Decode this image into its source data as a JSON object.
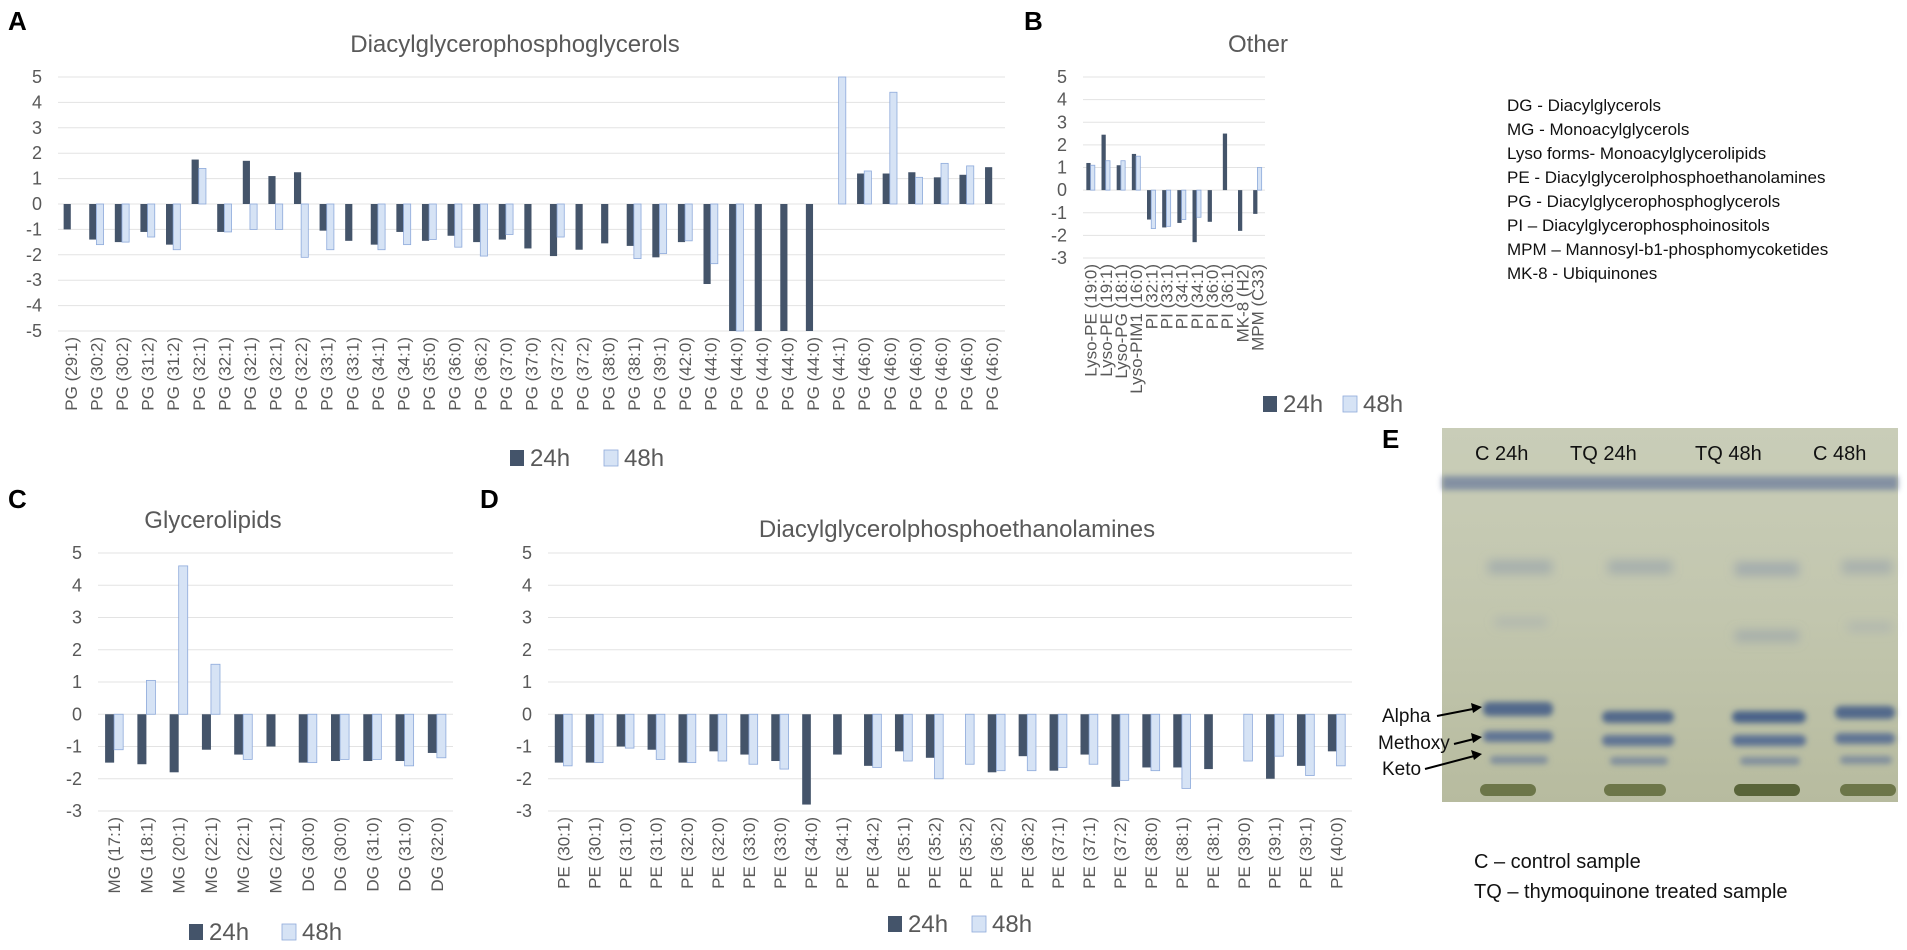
{
  "panels": {
    "A": "A",
    "B": "B",
    "C": "C",
    "D": "D",
    "E": "E"
  },
  "legend": {
    "s1": "24h",
    "s2": "48h"
  },
  "chart_data": [
    {
      "id": "A",
      "type": "bar",
      "title": "Diacylglycerophosphoglycerols",
      "ylim": [
        -5,
        5
      ],
      "yticks": [
        -5,
        -4,
        -3,
        -2,
        -1,
        0,
        1,
        2,
        3,
        4,
        5
      ],
      "categories": [
        "PG (29:1)",
        "PG (30:2)",
        "PG (30:2)",
        "PG (31:2)",
        "PG (31:2)",
        "PG (32:1)",
        "PG (32:1)",
        "PG (32:1)",
        "PG (32:1)",
        "PG (32:2)",
        "PG (33:1)",
        "PG (33:1)",
        "PG (34:1)",
        "PG (34:1)",
        "PG (35:0)",
        "PG (36:0)",
        "PG (36:2)",
        "PG (37:0)",
        "PG (37:0)",
        "PG (37:2)",
        "PG (37:2)",
        "PG (38:0)",
        "PG (38:1)",
        "PG (39:1)",
        "PG (42:0)",
        "PG (44:0)",
        "PG (44:0)",
        "PG (44:0)",
        "PG (44:0)",
        "PG (44:0)",
        "PG (44:1)",
        "PG (46:0)",
        "PG (46:0)",
        "PG (46:0)",
        "PG (46:0)",
        "PG (46:0)",
        "PG (46:0)"
      ],
      "series": [
        {
          "name": "24h",
          "values": [
            -1.0,
            -1.4,
            -1.5,
            -1.1,
            -1.6,
            1.75,
            -1.1,
            1.7,
            1.1,
            1.25,
            -1.05,
            -1.45,
            -1.6,
            -1.1,
            -1.45,
            -1.25,
            -1.5,
            -1.4,
            -1.75,
            -2.05,
            -1.8,
            -1.55,
            -1.65,
            -2.1,
            -1.5,
            -3.15,
            -5.0,
            -5.0,
            -5.0,
            -5.0,
            null,
            1.2,
            1.2,
            1.25,
            1.05,
            1.15,
            1.45
          ]
        },
        {
          "name": "48h",
          "values": [
            null,
            -1.6,
            -1.5,
            -1.3,
            -1.8,
            1.4,
            -1.1,
            -1.0,
            -1.0,
            -2.1,
            -1.8,
            null,
            -1.8,
            -1.6,
            -1.4,
            -1.7,
            -2.05,
            -1.2,
            null,
            -1.3,
            null,
            null,
            -2.15,
            -1.95,
            -1.45,
            -2.35,
            -5.0,
            null,
            null,
            null,
            5.0,
            1.3,
            4.4,
            1.05,
            1.6,
            1.5,
            null
          ]
        }
      ]
    },
    {
      "id": "B",
      "type": "bar",
      "title": "Other",
      "ylim": [
        -3,
        5
      ],
      "yticks": [
        -3,
        -2,
        -1,
        0,
        1,
        2,
        3,
        4,
        5
      ],
      "categories": [
        "Lyso-PE (19:0)",
        "Lyso-PE (19:1)",
        "Lyso-PG (18:1)",
        "Lyso-PIM1 (16:0)",
        "PI (32:1)",
        "PI (33:1)",
        "PI (34:1)",
        "PI (34:1)",
        "PI (36:0)",
        "PI (36:1)",
        "MK-8 (H2)",
        "MPM (C33)"
      ],
      "series": [
        {
          "name": "24h",
          "values": [
            1.2,
            2.45,
            1.1,
            1.6,
            -1.3,
            -1.65,
            -1.45,
            -2.3,
            -1.4,
            2.5,
            -1.8,
            -1.05
          ]
        },
        {
          "name": "48h",
          "values": [
            1.1,
            1.3,
            1.3,
            1.5,
            -1.7,
            -1.6,
            -1.3,
            -1.2,
            null,
            null,
            null,
            1.0
          ]
        }
      ]
    },
    {
      "id": "C",
      "type": "bar",
      "title": "Glycerolipids",
      "ylim": [
        -3,
        5
      ],
      "yticks": [
        -3,
        -2,
        -1,
        0,
        1,
        2,
        3,
        4,
        5
      ],
      "categories": [
        "MG (17:1)",
        "MG (18:1)",
        "MG (20:1)",
        "MG (22:1)",
        "MG (22:1)",
        "MG (22:1)",
        "DG (30:0)",
        "DG (30:0)",
        "DG (31:0)",
        "DG (31:0)",
        "DG (32:0)"
      ],
      "series": [
        {
          "name": "24h",
          "values": [
            -1.5,
            -1.55,
            -1.8,
            -1.1,
            -1.25,
            -1.0,
            -1.5,
            -1.45,
            -1.45,
            -1.45,
            -1.2
          ]
        },
        {
          "name": "48h",
          "values": [
            -1.1,
            1.05,
            4.6,
            1.55,
            -1.4,
            null,
            -1.5,
            -1.4,
            -1.4,
            -1.6,
            -1.35
          ]
        }
      ]
    },
    {
      "id": "D",
      "type": "bar",
      "title": "Diacylglycerolphosphoethanolamines",
      "ylim": [
        -3,
        5
      ],
      "yticks": [
        -3,
        -2,
        -1,
        0,
        1,
        2,
        3,
        4,
        5
      ],
      "categories": [
        "PE (30:1)",
        "PE (30:1)",
        "PE (31:0)",
        "PE (31:0)",
        "PE (32:0)",
        "PE (32:0)",
        "PE (33:0)",
        "PE (33:0)",
        "PE (34:0)",
        "PE (34:1)",
        "PE (34:2)",
        "PE (35:1)",
        "PE (35:2)",
        "PE (35:2)",
        "PE (36:2)",
        "PE (36:2)",
        "PE (37:1)",
        "PE (37:1)",
        "PE (37:2)",
        "PE (38:0)",
        "PE (38:1)",
        "PE (38:1)",
        "PE (39:0)",
        "PE (39:1)",
        "PE (39:1)",
        "PE (40:0)"
      ],
      "series": [
        {
          "name": "24h",
          "values": [
            -1.5,
            -1.5,
            -1.0,
            -1.1,
            -1.5,
            -1.15,
            -1.25,
            -1.45,
            -2.8,
            -1.25,
            -1.6,
            -1.15,
            -1.35,
            null,
            -1.8,
            -1.3,
            -1.75,
            -1.25,
            -2.25,
            -1.65,
            -1.65,
            -1.7,
            null,
            -2.0,
            -1.6,
            -1.15
          ]
        },
        {
          "name": "48h",
          "values": [
            -1.6,
            -1.5,
            -1.05,
            -1.4,
            -1.5,
            -1.45,
            -1.55,
            -1.7,
            null,
            null,
            -1.65,
            -1.45,
            -2.0,
            -1.55,
            -1.75,
            -1.75,
            -1.65,
            -1.55,
            -2.05,
            -1.75,
            -2.3,
            null,
            -1.45,
            -1.3,
            -1.9,
            -1.6
          ]
        }
      ]
    }
  ],
  "abbreviations": [
    "DG - Diacylglycerols",
    "MG - Monoacylglycerols",
    "Lyso forms- Monoacylglycerolipids",
    "PE - Diacylglycerolphosphoethanolamines",
    "PG - Diacylglycerophosphoglycerols",
    "PI – Diacylglycerophosphoinositols",
    "MPM – Mannosyl-b1-phosphomycoketides",
    "MK-8 - Ubiquinones"
  ],
  "tlc": {
    "lanes": [
      "C 24h",
      "TQ 24h",
      "TQ 48h",
      "C 48h"
    ],
    "bands": [
      "Alpha",
      "Methoxy",
      "Keto"
    ],
    "captions": [
      "C – control sample",
      "TQ – thymoquinone treated sample"
    ]
  }
}
